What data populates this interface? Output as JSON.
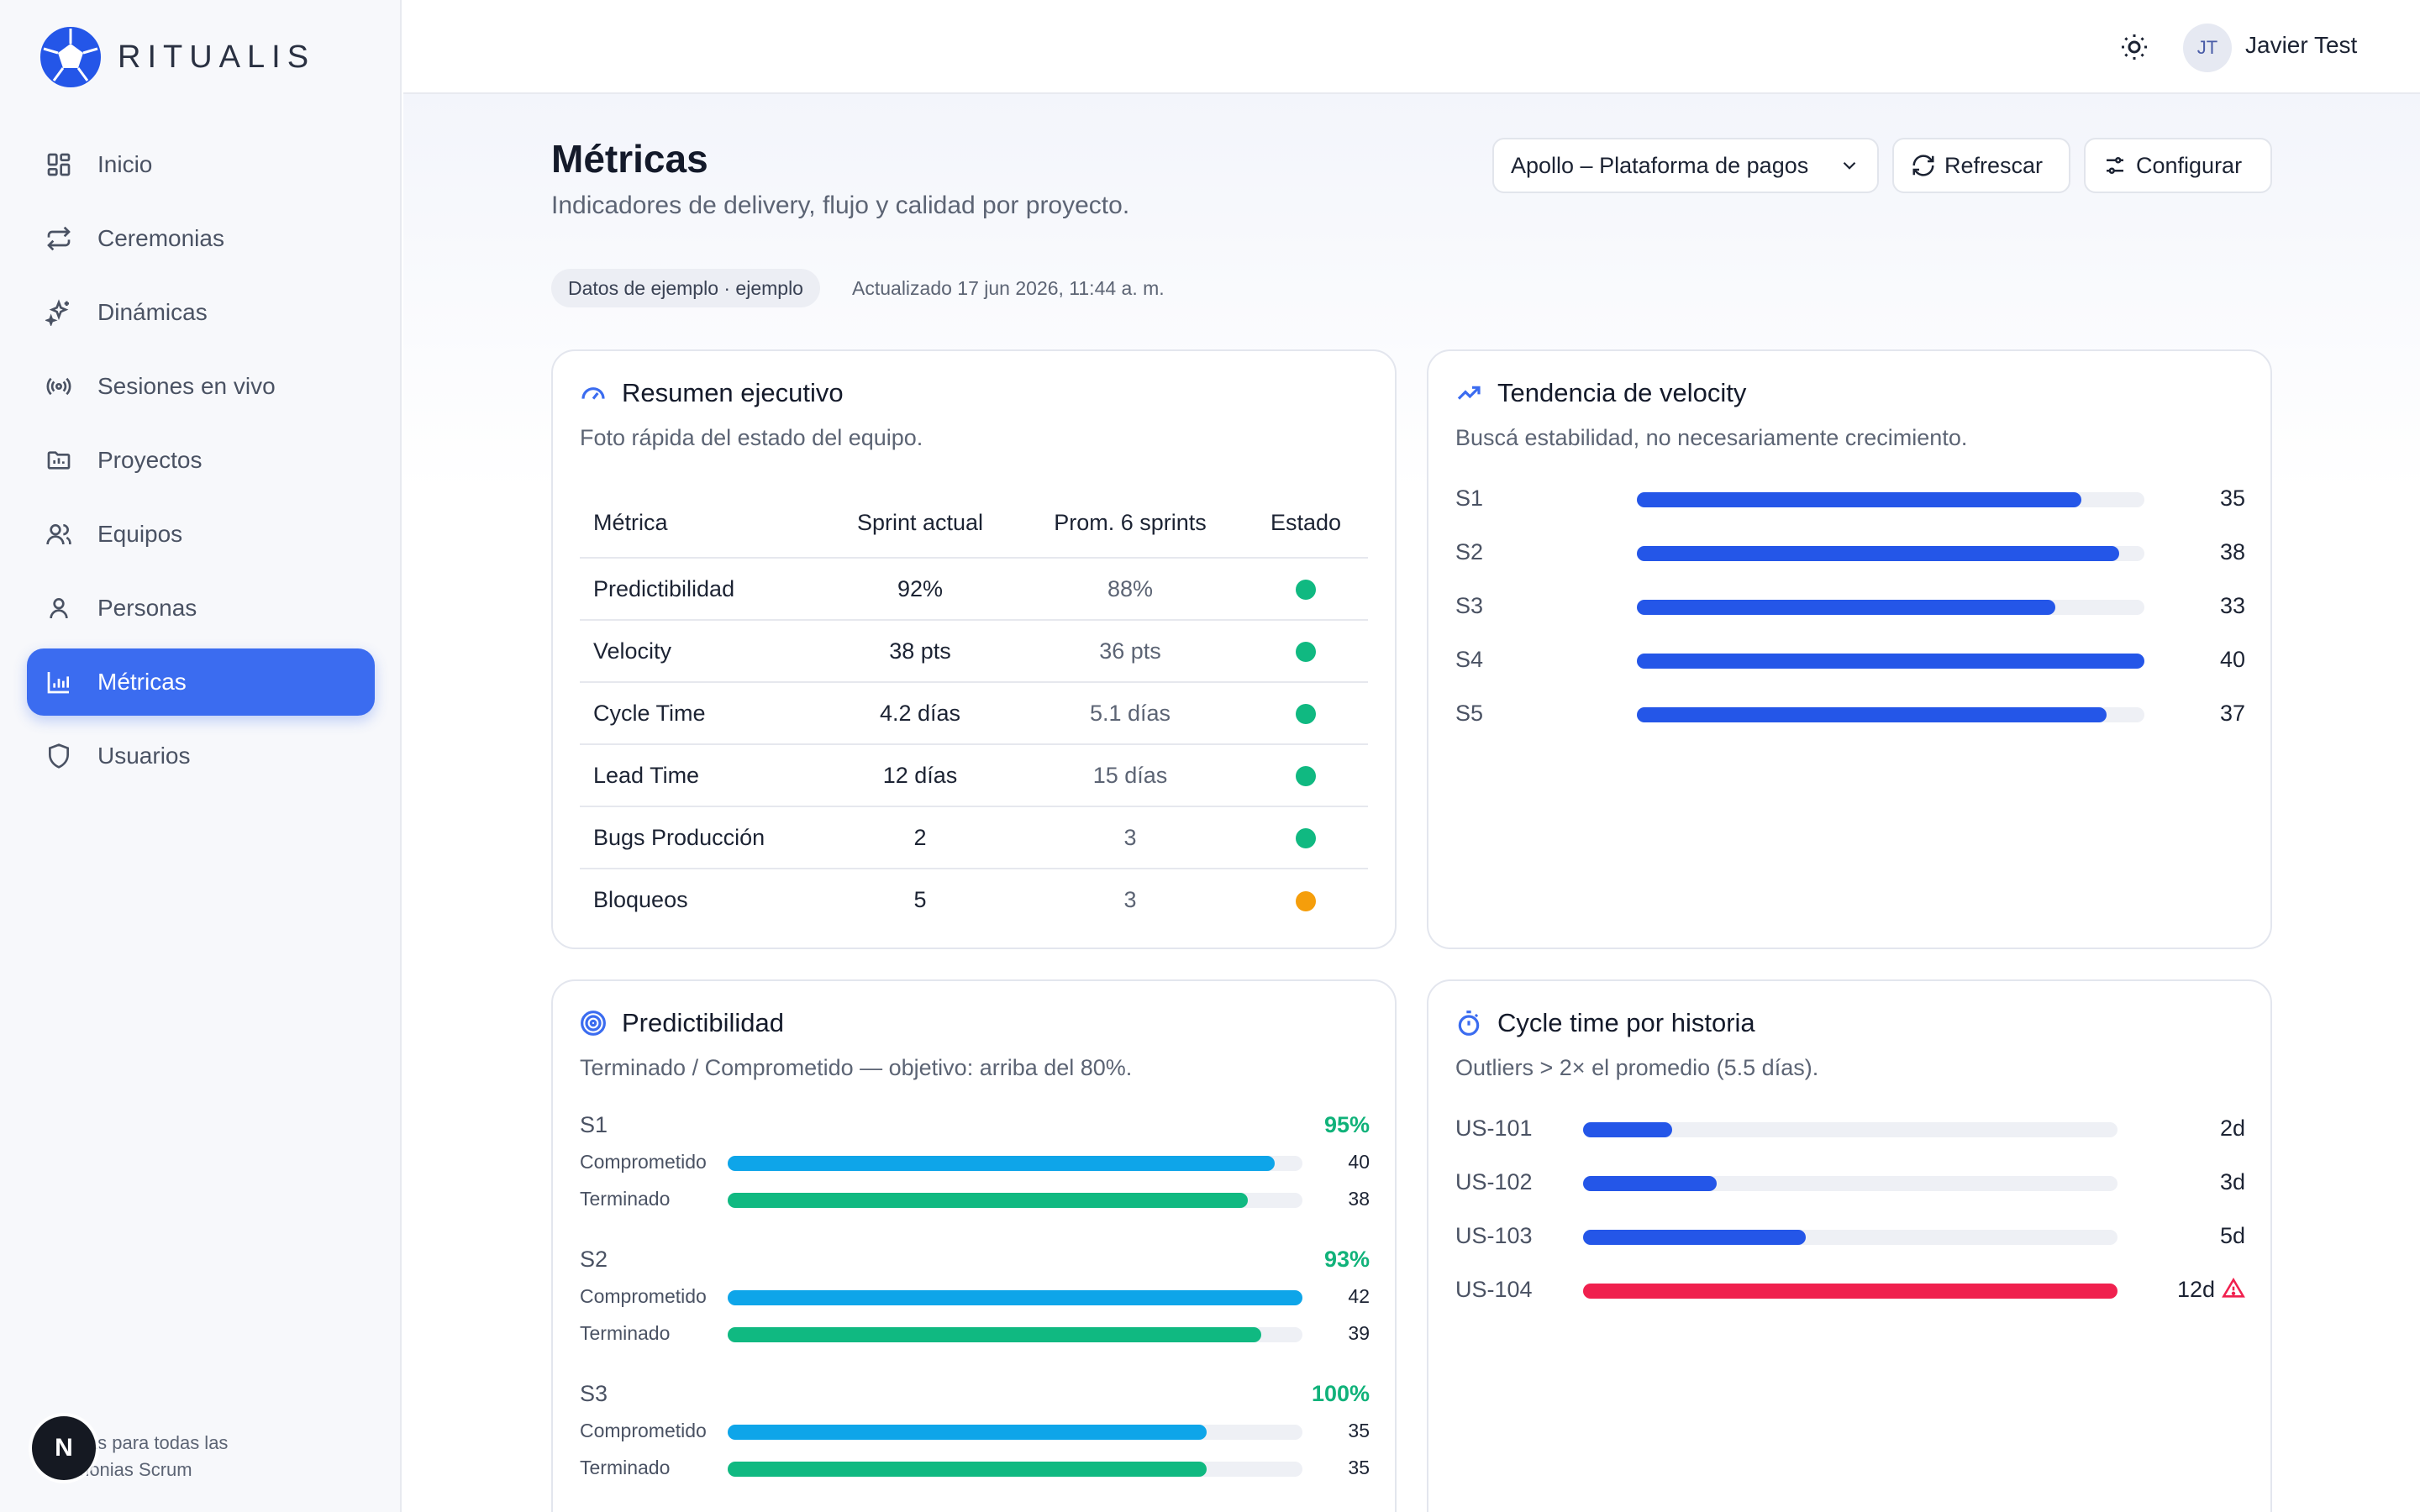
{
  "app": {
    "name": "RITUALIS"
  },
  "sidebar": {
    "items": [
      {
        "label": "Inicio",
        "icon": "grid-icon"
      },
      {
        "label": "Ceremonias",
        "icon": "repeat-icon"
      },
      {
        "label": "Dinámicas",
        "icon": "sparkle-icon"
      },
      {
        "label": "Sesiones en vivo",
        "icon": "broadcast-icon"
      },
      {
        "label": "Proyectos",
        "icon": "folder-icon"
      },
      {
        "label": "Equipos",
        "icon": "users-icon"
      },
      {
        "label": "Personas",
        "icon": "user-icon"
      },
      {
        "label": "Métricas",
        "icon": "bar-chart-icon",
        "active": true
      },
      {
        "label": "Usuarios",
        "icon": "shield-icon"
      }
    ],
    "footer_line1": "icas para todas las",
    "footer_line2": "monias Scrum",
    "badge": "N"
  },
  "topbar": {
    "avatar_initials": "JT",
    "user_name": "Javier Test"
  },
  "page": {
    "title": "Métricas",
    "subtitle": "Indicadores de delivery, flujo y calidad por proyecto.",
    "chip": "Datos de ejemplo · ejemplo",
    "updated": "Actualizado 17 jun 2026, 11:44 a. m.",
    "project_select": "Apollo – Plataforma de pagos",
    "refresh_label": "Refrescar",
    "config_label": "Configurar"
  },
  "summary": {
    "title": "Resumen ejecutivo",
    "subtitle": "Foto rápida del estado del equipo.",
    "headers": [
      "Métrica",
      "Sprint actual",
      "Prom. 6 sprints",
      "Estado"
    ],
    "rows": [
      {
        "metric": "Predictibilidad",
        "current": "92%",
        "avg": "88%",
        "status": "#10b981"
      },
      {
        "metric": "Velocity",
        "current": "38 pts",
        "avg": "36 pts",
        "status": "#10b981"
      },
      {
        "metric": "Cycle Time",
        "current": "4.2 días",
        "avg": "5.1 días",
        "status": "#10b981"
      },
      {
        "metric": "Lead Time",
        "current": "12 días",
        "avg": "15 días",
        "status": "#10b981"
      },
      {
        "metric": "Bugs Producción",
        "current": "2",
        "avg": "3",
        "status": "#10b981"
      },
      {
        "metric": "Bloqueos",
        "current": "5",
        "avg": "3",
        "status": "#f59e0b"
      }
    ]
  },
  "velocity": {
    "title": "Tendencia de velocity",
    "subtitle": "Buscá estabilidad, no necesariamente crecimiento.",
    "max": 40,
    "color": "#2456e8",
    "rows": [
      {
        "label": "S1",
        "value": 35
      },
      {
        "label": "S2",
        "value": 38
      },
      {
        "label": "S3",
        "value": 33
      },
      {
        "label": "S4",
        "value": 40
      },
      {
        "label": "S5",
        "value": 37
      }
    ]
  },
  "predictability": {
    "title": "Predictibilidad",
    "subtitle": "Terminado / Comprometido — objetivo: arriba del 80%.",
    "committed_label": "Comprometido",
    "done_label": "Terminado",
    "committed_color": "#0ea5e9",
    "done_color": "#10b981",
    "max": 42,
    "sprints": [
      {
        "label": "S1",
        "pct": "95%",
        "committed": 40,
        "done": 38
      },
      {
        "label": "S2",
        "pct": "93%",
        "committed": 42,
        "done": 39
      },
      {
        "label": "S3",
        "pct": "100%",
        "committed": 35,
        "done": 35
      }
    ]
  },
  "cycle": {
    "title": "Cycle time por historia",
    "subtitle": "Outliers > 2× el promedio (5.5 días).",
    "max": 12,
    "normal_color": "#2456e8",
    "outlier_color": "#f0204e",
    "rows": [
      {
        "label": "US-101",
        "value": 2,
        "display": "2d",
        "outlier": false
      },
      {
        "label": "US-102",
        "value": 3,
        "display": "3d",
        "outlier": false
      },
      {
        "label": "US-103",
        "value": 5,
        "display": "5d",
        "outlier": false
      },
      {
        "label": "US-104",
        "value": 12,
        "display": "12d",
        "outlier": true
      }
    ]
  }
}
